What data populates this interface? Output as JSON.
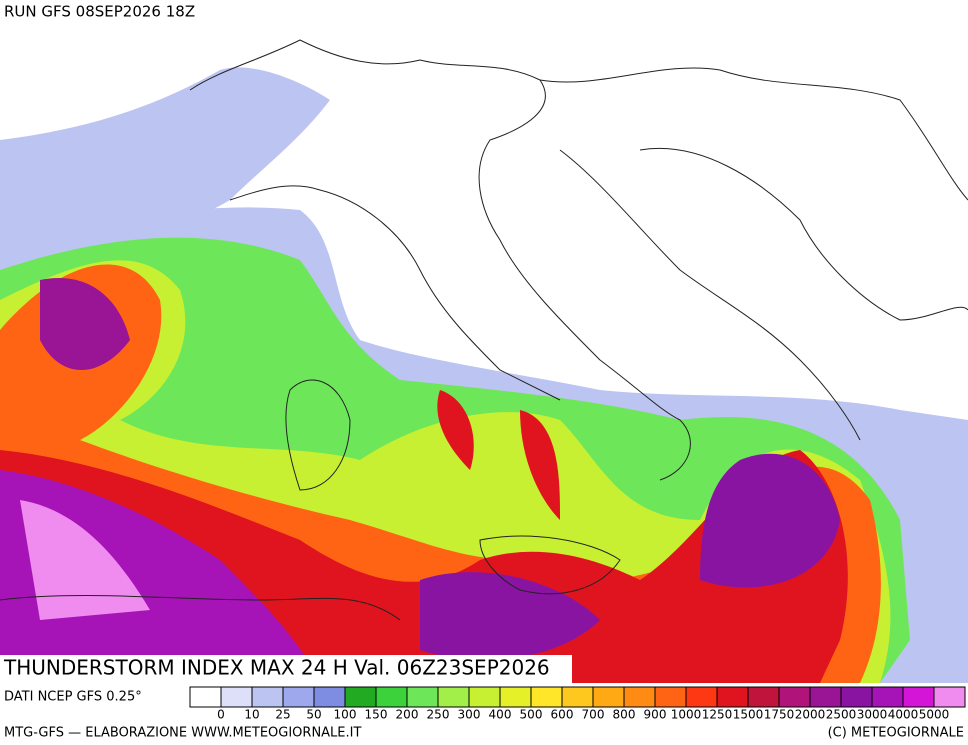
{
  "header": {
    "run": "RUN GFS 08SEP2026 18Z",
    "title": "THUNDERSTORM INDEX MAX 24 H Val. 06Z23SEP2026",
    "source": "DATI NCEP GFS 0.25°"
  },
  "legend": {
    "labels": [
      "0",
      "10",
      "25",
      "50",
      "100",
      "150",
      "200",
      "250",
      "300",
      "400",
      "500",
      "600",
      "700",
      "800",
      "900",
      "1000",
      "1250",
      "1500",
      "1750",
      "2000",
      "2500",
      "3000",
      "4000",
      "5000"
    ],
    "colors": [
      "#ffffff",
      "#dde0f8",
      "#bcc4f2",
      "#9ea8ec",
      "#7e8ce2",
      "#22aa22",
      "#3cd23c",
      "#6ee65a",
      "#a2ef4a",
      "#c8f032",
      "#e6f028",
      "#ffe628",
      "#ffc81e",
      "#ffaa14",
      "#ff8a14",
      "#ff6414",
      "#ff3814",
      "#e0141e",
      "#c0143c",
      "#b0147a",
      "#9a1496",
      "#8a14a2",
      "#a614b8",
      "#d414d6",
      "#f08cf0"
    ]
  },
  "footer": {
    "left": "MTG-GFS — ELABORAZIONE WWW.METEOGIORNALE.IT",
    "right": "(C) METEOGIORNALE"
  }
}
